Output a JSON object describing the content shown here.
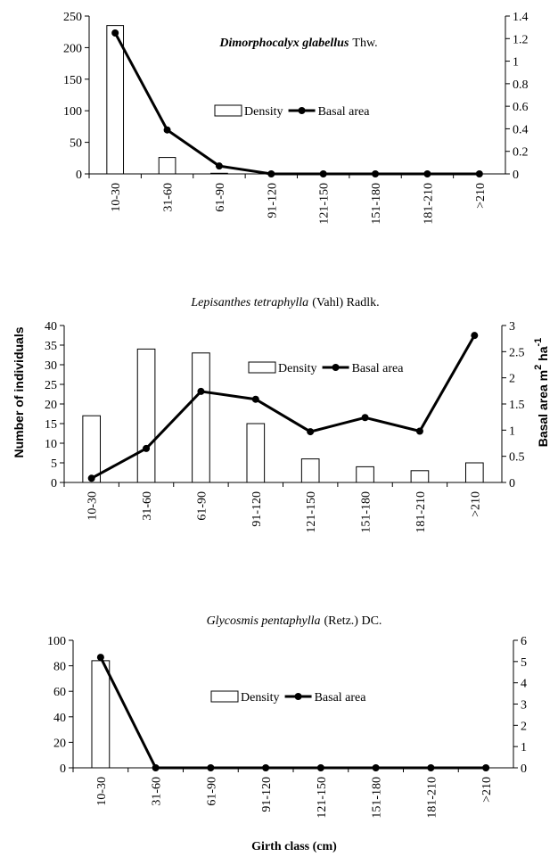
{
  "chart_data": [
    {
      "type": "bar",
      "title": [
        "Dimorphocalyx glabellus",
        "Thw."
      ],
      "categories": [
        "10-30",
        "31-60",
        "61-90",
        "91-120",
        "121-150",
        "151-180",
        "181-210",
        ">210"
      ],
      "series": [
        {
          "name": "Density",
          "color": "#ffffff",
          "values": [
            235,
            26,
            1,
            0,
            0,
            0,
            0,
            0
          ]
        },
        {
          "name": "Basal area",
          "color": "#000000",
          "axis": "y2",
          "values": [
            1.25,
            0.39,
            0.07,
            0,
            0,
            0,
            0,
            0
          ]
        }
      ],
      "ylim": [
        0,
        250
      ],
      "yticks": [
        0,
        50,
        100,
        150,
        200,
        250
      ],
      "y2lim": [
        0,
        1.4
      ],
      "y2ticks": [
        0,
        0.2,
        0.4,
        0.6,
        0.8,
        1,
        1.2,
        1.4
      ]
    },
    {
      "type": "bar",
      "title": [
        "Lepisanthes tetraphylla",
        "(Vahl) Radlk."
      ],
      "categories": [
        "10-30",
        "31-60",
        "61-90",
        "91-120",
        "121-150",
        "151-180",
        "181-210",
        ">210"
      ],
      "series": [
        {
          "name": "Density",
          "color": "#ffffff",
          "values": [
            17,
            34,
            33,
            15,
            6,
            4,
            3,
            5
          ]
        },
        {
          "name": "Basal area",
          "color": "#000000",
          "axis": "y2",
          "values": [
            0.08,
            0.65,
            1.74,
            1.59,
            0.97,
            1.24,
            0.98,
            2.81
          ]
        }
      ],
      "ylim": [
        0,
        40
      ],
      "yticks": [
        0,
        5,
        10,
        15,
        20,
        25,
        30,
        35,
        40
      ],
      "y2lim": [
        0,
        3
      ],
      "y2ticks": [
        0,
        0.5,
        1,
        1.5,
        2,
        2.5,
        3
      ],
      "ylabel": "Number of individuals",
      "y2label": [
        "Basal area m",
        "2",
        " ha",
        "-1"
      ]
    },
    {
      "type": "bar",
      "title": [
        "Glycosmis pentaphylla",
        "(Retz.) DC."
      ],
      "categories": [
        "10-30",
        "31-60",
        "61-90",
        "91-120",
        "121-150",
        "151-180",
        "181-210",
        ">210"
      ],
      "series": [
        {
          "name": "Density",
          "color": "#ffffff",
          "values": [
            84,
            0,
            0,
            0,
            0,
            0,
            0,
            0
          ]
        },
        {
          "name": "Basal area",
          "color": "#000000",
          "axis": "y2",
          "values": [
            5.2,
            0,
            0,
            0,
            0,
            0,
            0,
            0
          ]
        }
      ],
      "ylim": [
        0,
        100
      ],
      "yticks": [
        0,
        20,
        40,
        60,
        80,
        100
      ],
      "y2lim": [
        0,
        6
      ],
      "y2ticks": [
        0,
        1,
        2,
        3,
        4,
        5,
        6
      ],
      "xlabel": "Girth class (cm)"
    }
  ]
}
